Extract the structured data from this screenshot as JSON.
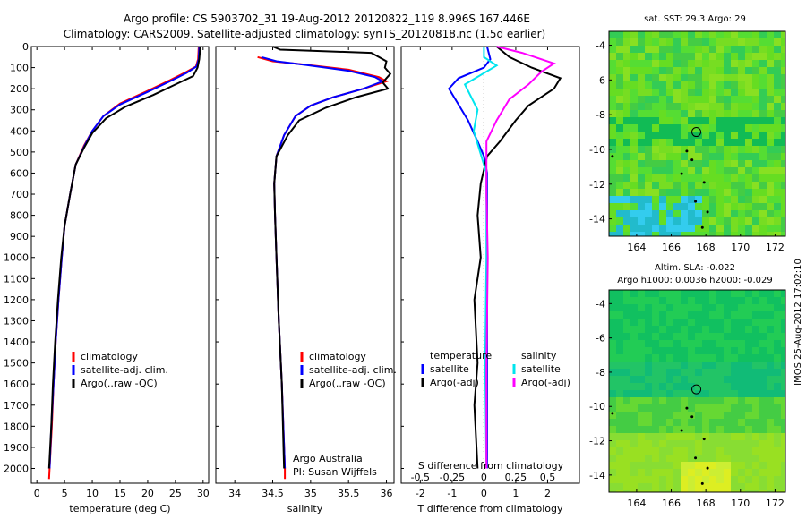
{
  "header": {
    "line1": "Argo profile: CS 5903702_31 19-Aug-2012 20120822_119 8.996S 167.446E",
    "line2": "Climatology: CARS2009. Satellite-adjusted climatology: synTS_20120818.nc (1.5d earlier)"
  },
  "colors": {
    "climatology": "#ff0000",
    "satellite": "#0000ff",
    "argo": "#000000",
    "sal_satellite": "#00e5ee",
    "sal_argo": "#ff00ff"
  },
  "chart_data": [
    {
      "type": "line",
      "xlabel": "temperature (deg C)",
      "ylabel": "",
      "xlim": [
        -1,
        31
      ],
      "ylim": [
        2070,
        0
      ],
      "xticks": [
        0,
        5,
        10,
        15,
        20,
        25,
        30
      ],
      "yticks": [
        0,
        100,
        200,
        300,
        400,
        500,
        600,
        700,
        800,
        900,
        1000,
        1100,
        1200,
        1300,
        1400,
        1500,
        1600,
        1700,
        1800,
        1900,
        2000
      ],
      "legend": [
        "climatology",
        "satellite-adj. clim.",
        "Argo(..raw -QC)"
      ],
      "series": [
        {
          "name": "climatology",
          "color": "#ff0000",
          "points": [
            [
              29.2,
              0
            ],
            [
              29.1,
              60
            ],
            [
              28.7,
              95
            ],
            [
              27,
              120
            ],
            [
              24,
              160
            ],
            [
              20,
              210
            ],
            [
              15,
              270
            ],
            [
              12,
              330
            ],
            [
              10,
              400
            ],
            [
              8.5,
              470
            ],
            [
              7,
              560
            ],
            [
              6,
              700
            ],
            [
              5,
              850
            ],
            [
              4.5,
              1000
            ],
            [
              3.9,
              1200
            ],
            [
              3.4,
              1400
            ],
            [
              3.0,
              1600
            ],
            [
              2.7,
              1800
            ],
            [
              2.3,
              2000
            ],
            [
              2.2,
              2050
            ]
          ]
        },
        {
          "name": "satellite-adj. clim.",
          "color": "#0000ff",
          "points": [
            [
              29.3,
              0
            ],
            [
              29.2,
              60
            ],
            [
              28.8,
              95
            ],
            [
              27,
              125
            ],
            [
              24,
              165
            ],
            [
              20,
              215
            ],
            [
              15,
              275
            ],
            [
              12,
              330
            ],
            [
              10,
              400
            ],
            [
              8.6,
              470
            ],
            [
              7,
              560
            ],
            [
              6,
              700
            ],
            [
              5,
              850
            ],
            [
              4.5,
              1000
            ],
            [
              3.9,
              1200
            ],
            [
              3.4,
              1400
            ],
            [
              3.0,
              1600
            ],
            [
              2.6,
              1800
            ],
            [
              2.3,
              2000
            ]
          ]
        },
        {
          "name": "Argo(..raw -QC)",
          "color": "#000000",
          "points": [
            [
              29.5,
              0
            ],
            [
              29.3,
              60
            ],
            [
              29,
              100
            ],
            [
              28.2,
              140
            ],
            [
              25,
              180
            ],
            [
              21,
              230
            ],
            [
              16,
              285
            ],
            [
              12.5,
              340
            ],
            [
              10,
              410
            ],
            [
              8.5,
              480
            ],
            [
              7,
              560
            ],
            [
              6,
              700
            ],
            [
              5,
              850
            ],
            [
              4.4,
              1000
            ],
            [
              3.8,
              1200
            ],
            [
              3.3,
              1400
            ],
            [
              2.9,
              1600
            ],
            [
              2.6,
              1800
            ],
            [
              2.2,
              2000
            ]
          ]
        }
      ]
    },
    {
      "type": "line",
      "xlabel": "salinity",
      "ylabel": "",
      "xlim": [
        33.75,
        36.1
      ],
      "ylim": [
        2070,
        0
      ],
      "xticks": [
        34,
        34.5,
        35,
        35.5,
        36
      ],
      "legend": [
        "climatology",
        "satellite-adj. clim.",
        "Argo(..raw -QC)"
      ],
      "annotation": [
        "Argo Australia",
        "PI: Susan Wijffels"
      ],
      "series": [
        {
          "name": "climatology",
          "color": "#ff0000",
          "points": [
            [
              34.3,
              50
            ],
            [
              34.5,
              70
            ],
            [
              34.9,
              85
            ],
            [
              35.5,
              110
            ],
            [
              35.9,
              145
            ],
            [
              36.0,
              165
            ],
            [
              35.7,
              200
            ],
            [
              35.3,
              240
            ],
            [
              35.0,
              280
            ],
            [
              34.8,
              330
            ],
            [
              34.65,
              420
            ],
            [
              34.55,
              520
            ],
            [
              34.52,
              650
            ],
            [
              34.53,
              800
            ],
            [
              34.55,
              1000
            ],
            [
              34.58,
              1300
            ],
            [
              34.62,
              1600
            ],
            [
              34.66,
              2000
            ],
            [
              34.66,
              2050
            ]
          ]
        },
        {
          "name": "satellite-adj. clim.",
          "color": "#0000ff",
          "points": [
            [
              34.35,
              50
            ],
            [
              34.55,
              70
            ],
            [
              34.95,
              88
            ],
            [
              35.5,
              115
            ],
            [
              35.85,
              145
            ],
            [
              35.95,
              165
            ],
            [
              35.7,
              200
            ],
            [
              35.3,
              240
            ],
            [
              35.0,
              280
            ],
            [
              34.8,
              330
            ],
            [
              34.65,
              420
            ],
            [
              34.55,
              520
            ],
            [
              34.52,
              650
            ],
            [
              34.53,
              800
            ],
            [
              34.55,
              1000
            ],
            [
              34.58,
              1300
            ],
            [
              34.62,
              1600
            ],
            [
              34.66,
              2000
            ]
          ]
        },
        {
          "name": "Argo(..raw -QC)",
          "color": "#000000",
          "points": [
            [
              34.5,
              0
            ],
            [
              34.6,
              15
            ],
            [
              35.8,
              30
            ],
            [
              35.9,
              50
            ],
            [
              36.0,
              70
            ],
            [
              35.98,
              100
            ],
            [
              36.05,
              130
            ],
            [
              35.95,
              170
            ],
            [
              36.02,
              200
            ],
            [
              35.6,
              240
            ],
            [
              35.2,
              290
            ],
            [
              34.85,
              350
            ],
            [
              34.7,
              420
            ],
            [
              34.55,
              520
            ],
            [
              34.52,
              650
            ],
            [
              34.53,
              800
            ],
            [
              34.55,
              1000
            ],
            [
              34.58,
              1300
            ],
            [
              34.62,
              1600
            ],
            [
              34.65,
              2000
            ]
          ]
        }
      ]
    },
    {
      "type": "line",
      "xlabel": "T difference from climatology",
      "x2label": "S difference from climatology",
      "xlim": [
        -2.6,
        3.0
      ],
      "ylim": [
        2070,
        0
      ],
      "xticks": [
        -2,
        -1,
        0,
        1,
        2
      ],
      "x2ticks": [
        -0.5,
        -0.25,
        0,
        0.25,
        0.5
      ],
      "legend_left_title": "temperature",
      "legend_right_title": "salinity",
      "legend_left": [
        "satellite",
        "Argo(-adj)"
      ],
      "legend_right": [
        "satellite",
        "Argo(-adj)"
      ],
      "series": [
        {
          "name": "T satellite",
          "color": "#0000ff",
          "points": [
            [
              0.1,
              0
            ],
            [
              0.2,
              60
            ],
            [
              0,
              100
            ],
            [
              -0.8,
              150
            ],
            [
              -1.1,
              200
            ],
            [
              -0.9,
              250
            ],
            [
              -0.5,
              350
            ],
            [
              -0.2,
              450
            ],
            [
              0,
              520
            ],
            [
              0.1,
              600
            ],
            [
              0.1,
              800
            ],
            [
              0.1,
              1000
            ],
            [
              0.1,
              1500
            ],
            [
              0.1,
              2000
            ]
          ]
        },
        {
          "name": "T Argo(-adj)",
          "color": "#000000",
          "points": [
            [
              0.4,
              0
            ],
            [
              0.8,
              50
            ],
            [
              1.5,
              100
            ],
            [
              2.4,
              150
            ],
            [
              2.2,
              200
            ],
            [
              1.4,
              280
            ],
            [
              1.0,
              350
            ],
            [
              0.5,
              450
            ],
            [
              0.1,
              520
            ],
            [
              -0.1,
              650
            ],
            [
              -0.2,
              800
            ],
            [
              -0.1,
              1000
            ],
            [
              -0.3,
              1200
            ],
            [
              -0.2,
              1500
            ],
            [
              -0.3,
              1700
            ],
            [
              -0.2,
              2000
            ]
          ]
        },
        {
          "name": "S satellite",
          "color": "#00e5ee",
          "points": [
            [
              0,
              0
            ],
            [
              0,
              50
            ],
            [
              0.1,
              90
            ],
            [
              -0.15,
              180
            ],
            [
              -0.05,
              300
            ],
            [
              -0.08,
              400
            ],
            [
              -0.02,
              520
            ],
            [
              0.02,
              600
            ],
            [
              0.02,
              1000
            ],
            [
              0.01,
              1500
            ],
            [
              0.02,
              2000
            ]
          ]
        },
        {
          "name": "S Argo(-adj)",
          "color": "#ff00ff",
          "points": [
            [
              0.1,
              0
            ],
            [
              0.3,
              30
            ],
            [
              0.55,
              80
            ],
            [
              0.45,
              120
            ],
            [
              0.35,
              180
            ],
            [
              0.2,
              250
            ],
            [
              0.1,
              350
            ],
            [
              0.02,
              450
            ],
            [
              0.02,
              700
            ],
            [
              0.03,
              1000
            ],
            [
              0.02,
              1500
            ],
            [
              0.02,
              2000
            ]
          ]
        }
      ]
    },
    {
      "type": "heatmap",
      "title": "sat. SST: 29.3 Argo: 29",
      "xlim": [
        162.4,
        172.6
      ],
      "ylim": [
        -15,
        -3.2
      ],
      "xticks": [
        164,
        166,
        168,
        170,
        172
      ],
      "yticks": [
        -4,
        -6,
        -8,
        -10,
        -12,
        -14
      ],
      "marker": [
        167.45,
        -9.0
      ]
    },
    {
      "type": "heatmap",
      "title": "Altim. SLA: -0.022",
      "subtitle": "Argo h1000: 0.0036 h2000: -0.029",
      "xlim": [
        162.4,
        172.6
      ],
      "ylim": [
        -15,
        -3.2
      ],
      "xticks": [
        164,
        166,
        168,
        170,
        172
      ],
      "yticks": [
        -4,
        -6,
        -8,
        -10,
        -12,
        -14
      ],
      "marker": [
        167.45,
        -9.0
      ]
    }
  ],
  "sidebar": {
    "stamp": "IMOS 25-Aug-2012 17:02:10"
  }
}
